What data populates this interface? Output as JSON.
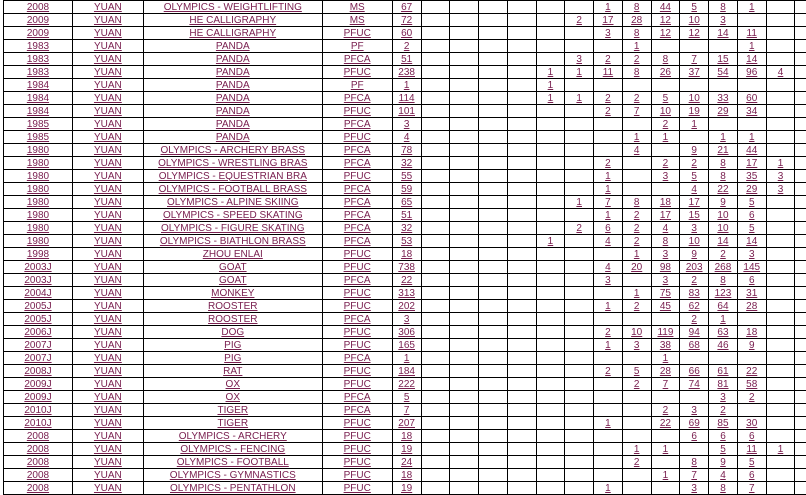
{
  "colors": {
    "link_text": "#7A2050",
    "grid_line": "#000000",
    "background": "#FFFFFF"
  },
  "table": {
    "narrow_column_count": 14,
    "rows": [
      {
        "year": "2008",
        "denomination": "YUAN",
        "description": "OLYMPICS - WEIGHTLIFTING",
        "grade": "MS",
        "total": "67",
        "cells": [
          "",
          "",
          "",
          "",
          "",
          "",
          "1",
          "8",
          "44",
          "5",
          "8",
          "1",
          "",
          ""
        ]
      },
      {
        "year": "2009",
        "denomination": "YUAN",
        "description": "HE CALLIGRAPHY",
        "grade": "MS",
        "total": "72",
        "cells": [
          "",
          "",
          "",
          "",
          "",
          "2",
          "17",
          "28",
          "12",
          "10",
          "3",
          "",
          "",
          ""
        ]
      },
      {
        "year": "2009",
        "denomination": "YUAN",
        "description": "HE CALLIGRAPHY",
        "grade": "PFUC",
        "total": "60",
        "cells": [
          "",
          "",
          "",
          "",
          "",
          "",
          "3",
          "8",
          "12",
          "12",
          "14",
          "11",
          "",
          ""
        ]
      },
      {
        "year": "1983",
        "denomination": "YUAN",
        "description": "PANDA",
        "grade": "PF",
        "total": "2",
        "cells": [
          "",
          "",
          "",
          "",
          "",
          "",
          "",
          "1",
          "",
          "",
          "",
          "1",
          "",
          ""
        ]
      },
      {
        "year": "1983",
        "denomination": "YUAN",
        "description": "PANDA",
        "grade": "PFCA",
        "total": "51",
        "cells": [
          "",
          "",
          "",
          "",
          "",
          "3",
          "2",
          "2",
          "8",
          "7",
          "15",
          "14",
          "",
          ""
        ]
      },
      {
        "year": "1983",
        "denomination": "YUAN",
        "description": "PANDA",
        "grade": "PFUC",
        "total": "238",
        "cells": [
          "",
          "",
          "",
          "",
          "1",
          "1",
          "11",
          "8",
          "26",
          "37",
          "54",
          "96",
          "4",
          ""
        ]
      },
      {
        "year": "1984",
        "denomination": "YUAN",
        "description": "PANDA",
        "grade": "PF",
        "total": "1",
        "cells": [
          "",
          "",
          "",
          "",
          "1",
          "",
          "",
          "",
          "",
          "",
          "",
          "",
          "",
          ""
        ]
      },
      {
        "year": "1984",
        "denomination": "YUAN",
        "description": "PANDA",
        "grade": "PFCA",
        "total": "114",
        "cells": [
          "",
          "",
          "",
          "",
          "1",
          "1",
          "2",
          "2",
          "5",
          "10",
          "33",
          "60",
          "",
          ""
        ]
      },
      {
        "year": "1984",
        "denomination": "YUAN",
        "description": "PANDA",
        "grade": "PFUC",
        "total": "101",
        "cells": [
          "",
          "",
          "",
          "",
          "",
          "",
          "2",
          "7",
          "10",
          "19",
          "29",
          "34",
          "",
          ""
        ]
      },
      {
        "year": "1985",
        "denomination": "YUAN",
        "description": "PANDA",
        "grade": "PFCA",
        "total": "3",
        "cells": [
          "",
          "",
          "",
          "",
          "",
          "",
          "",
          "",
          "2",
          "1",
          "",
          "",
          "",
          ""
        ]
      },
      {
        "year": "1985",
        "denomination": "YUAN",
        "description": "PANDA",
        "grade": "PFUC",
        "total": "4",
        "cells": [
          "",
          "",
          "",
          "",
          "",
          "",
          "",
          "1",
          "1",
          "",
          "1",
          "1",
          "",
          ""
        ]
      },
      {
        "year": "1980",
        "denomination": "YUAN",
        "description": "OLYMPICS - ARCHERY BRASS",
        "grade": "PFCA",
        "total": "78",
        "cells": [
          "",
          "",
          "",
          "",
          "",
          "",
          "",
          "4",
          "",
          "9",
          "21",
          "44",
          "",
          ""
        ]
      },
      {
        "year": "1980",
        "denomination": "YUAN",
        "description": "OLYMPICS - WRESTLING BRAS",
        "grade": "PFCA",
        "total": "32",
        "cells": [
          "",
          "",
          "",
          "",
          "",
          "",
          "2",
          "",
          "2",
          "2",
          "8",
          "17",
          "1",
          ""
        ]
      },
      {
        "year": "1980",
        "denomination": "YUAN",
        "description": "OLYMPICS - EQUESTRIAN BRA",
        "grade": "PFUC",
        "total": "55",
        "cells": [
          "",
          "",
          "",
          "",
          "",
          "",
          "1",
          "",
          "3",
          "5",
          "8",
          "35",
          "3",
          ""
        ]
      },
      {
        "year": "1980",
        "denomination": "YUAN",
        "description": "OLYMPICS - FOOTBALL BRASS",
        "grade": "PFCA",
        "total": "59",
        "cells": [
          "",
          "",
          "",
          "",
          "",
          "",
          "1",
          "",
          "",
          "4",
          "22",
          "29",
          "3",
          ""
        ]
      },
      {
        "year": "1980",
        "denomination": "YUAN",
        "description": "OLYMPICS - ALPINE SKIING",
        "grade": "PFCA",
        "total": "65",
        "cells": [
          "",
          "",
          "",
          "",
          "",
          "1",
          "7",
          "8",
          "18",
          "17",
          "9",
          "5",
          "",
          ""
        ]
      },
      {
        "year": "1980",
        "denomination": "YUAN",
        "description": "OLYMPICS - SPEED SKATING",
        "grade": "PFCA",
        "total": "51",
        "cells": [
          "",
          "",
          "",
          "",
          "",
          "",
          "1",
          "2",
          "17",
          "15",
          "10",
          "6",
          "",
          ""
        ]
      },
      {
        "year": "1980",
        "denomination": "YUAN",
        "description": "OLYMPICS - FIGURE SKATING",
        "grade": "PFCA",
        "total": "32",
        "cells": [
          "",
          "",
          "",
          "",
          "",
          "2",
          "6",
          "2",
          "4",
          "3",
          "10",
          "5",
          "",
          ""
        ]
      },
      {
        "year": "1980",
        "denomination": "YUAN",
        "description": "OLYMPICS - BIATHLON BRASS",
        "grade": "PFCA",
        "total": "53",
        "cells": [
          "",
          "",
          "",
          "",
          "1",
          "",
          "4",
          "2",
          "8",
          "10",
          "14",
          "14",
          "",
          ""
        ]
      },
      {
        "year": "1998",
        "denomination": "YUAN",
        "description": "ZHOU ENLAI",
        "grade": "PFUC",
        "total": "18",
        "cells": [
          "",
          "",
          "",
          "",
          "",
          "",
          "",
          "1",
          "3",
          "9",
          "2",
          "3",
          "",
          ""
        ]
      },
      {
        "year": "2003J",
        "denomination": "YUAN",
        "description": "GOAT",
        "grade": "PFUC",
        "total": "738",
        "cells": [
          "",
          "",
          "",
          "",
          "",
          "",
          "4",
          "20",
          "98",
          "203",
          "268",
          "145",
          "",
          ""
        ]
      },
      {
        "year": "2003J",
        "denomination": "YUAN",
        "description": "GOAT",
        "grade": "PFCA",
        "total": "22",
        "cells": [
          "",
          "",
          "",
          "",
          "",
          "",
          "3",
          "",
          "3",
          "2",
          "8",
          "6",
          "",
          ""
        ]
      },
      {
        "year": "2004J",
        "denomination": "YUAN",
        "description": "MONKEY",
        "grade": "PFUC",
        "total": "313",
        "cells": [
          "",
          "",
          "",
          "",
          "",
          "",
          "",
          "1",
          "75",
          "83",
          "123",
          "31",
          "",
          ""
        ]
      },
      {
        "year": "2005J",
        "denomination": "YUAN",
        "description": "ROOSTER",
        "grade": "PFUC",
        "total": "202",
        "cells": [
          "",
          "",
          "",
          "",
          "",
          "",
          "1",
          "2",
          "45",
          "62",
          "64",
          "28",
          "",
          ""
        ]
      },
      {
        "year": "2005J",
        "denomination": "YUAN",
        "description": "ROOSTER",
        "grade": "PFCA",
        "total": "3",
        "cells": [
          "",
          "",
          "",
          "",
          "",
          "",
          "",
          "",
          "",
          "2",
          "1",
          "",
          "",
          ""
        ]
      },
      {
        "year": "2006J",
        "denomination": "YUAN",
        "description": "DOG",
        "grade": "PFUC",
        "total": "306",
        "cells": [
          "",
          "",
          "",
          "",
          "",
          "",
          "2",
          "10",
          "119",
          "94",
          "63",
          "18",
          "",
          ""
        ]
      },
      {
        "year": "2007J",
        "denomination": "YUAN",
        "description": "PIG",
        "grade": "PFUC",
        "total": "165",
        "cells": [
          "",
          "",
          "",
          "",
          "",
          "",
          "1",
          "3",
          "38",
          "68",
          "46",
          "9",
          "",
          ""
        ]
      },
      {
        "year": "2007J",
        "denomination": "YUAN",
        "description": "PIG",
        "grade": "PFCA",
        "total": "1",
        "cells": [
          "",
          "",
          "",
          "",
          "",
          "",
          "",
          "",
          "1",
          "",
          "",
          "",
          "",
          ""
        ]
      },
      {
        "year": "2008J",
        "denomination": "YUAN",
        "description": "RAT",
        "grade": "PFUC",
        "total": "184",
        "cells": [
          "",
          "",
          "",
          "",
          "",
          "",
          "2",
          "5",
          "28",
          "66",
          "61",
          "22",
          "",
          ""
        ]
      },
      {
        "year": "2009J",
        "denomination": "YUAN",
        "description": "OX",
        "grade": "PFUC",
        "total": "222",
        "cells": [
          "",
          "",
          "",
          "",
          "",
          "",
          "",
          "2",
          "7",
          "74",
          "81",
          "58",
          "",
          ""
        ]
      },
      {
        "year": "2009J",
        "denomination": "YUAN",
        "description": "OX",
        "grade": "PFCA",
        "total": "5",
        "cells": [
          "",
          "",
          "",
          "",
          "",
          "",
          "",
          "",
          "",
          "",
          "3",
          "2",
          "",
          ""
        ]
      },
      {
        "year": "2010J",
        "denomination": "YUAN",
        "description": "TIGER",
        "grade": "PFCA",
        "total": "7",
        "cells": [
          "",
          "",
          "",
          "",
          "",
          "",
          "",
          "",
          "2",
          "3",
          "2",
          "",
          "",
          ""
        ]
      },
      {
        "year": "2010J",
        "denomination": "YUAN",
        "description": "TIGER",
        "grade": "PFUC",
        "total": "207",
        "cells": [
          "",
          "",
          "",
          "",
          "",
          "",
          "1",
          "",
          "22",
          "69",
          "85",
          "30",
          "",
          ""
        ]
      },
      {
        "year": "2008",
        "denomination": "YUAN",
        "description": "OLYMPICS - ARCHERY",
        "grade": "PFUC",
        "total": "18",
        "cells": [
          "",
          "",
          "",
          "",
          "",
          "",
          "",
          "",
          "",
          "6",
          "6",
          "6",
          "",
          ""
        ]
      },
      {
        "year": "2008",
        "denomination": "YUAN",
        "description": "OLYMPICS - FENCING",
        "grade": "PFUC",
        "total": "19",
        "cells": [
          "",
          "",
          "",
          "",
          "",
          "",
          "",
          "1",
          "1",
          "",
          "5",
          "11",
          "1",
          ""
        ]
      },
      {
        "year": "2008",
        "denomination": "YUAN",
        "description": "OLYMPICS - FOOTBALL",
        "grade": "PFUC",
        "total": "24",
        "cells": [
          "",
          "",
          "",
          "",
          "",
          "",
          "",
          "2",
          "",
          "8",
          "9",
          "5",
          "",
          ""
        ]
      },
      {
        "year": "2008",
        "denomination": "YUAN",
        "description": "OLYMPICS - GYMNASTICS",
        "grade": "PFUC",
        "total": "18",
        "cells": [
          "",
          "",
          "",
          "",
          "",
          "",
          "",
          "",
          "1",
          "7",
          "4",
          "6",
          "",
          ""
        ]
      },
      {
        "year": "2008",
        "denomination": "YUAN",
        "description": "OLYMPICS - PENTATHLON",
        "grade": "PFUC",
        "total": "19",
        "cells": [
          "",
          "",
          "",
          "",
          "",
          "",
          "1",
          "",
          "",
          "3",
          "8",
          "7",
          "",
          ""
        ]
      }
    ]
  }
}
